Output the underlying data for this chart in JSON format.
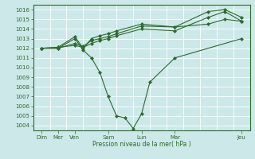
{
  "background_color": "#cce8e8",
  "grid_color": "#ffffff",
  "line_color": "#2d6a2d",
  "marker_color": "#2d6a2d",
  "xlabel": "Pression niveau de la mer( hPa )",
  "ylim": [
    1003.5,
    1016.5
  ],
  "xlim": [
    0,
    13
  ],
  "yticks": [
    1004,
    1005,
    1006,
    1007,
    1008,
    1009,
    1010,
    1011,
    1012,
    1013,
    1014,
    1015,
    1016
  ],
  "xtick_positions": [
    0.5,
    1.5,
    2.5,
    4.5,
    6.5,
    8.5,
    12.5
  ],
  "xtick_labels": [
    "Dim",
    "Mer",
    "Ven",
    "Sam",
    "Lun",
    "Mar",
    "Jeu"
  ],
  "minor_xtick_positions": [
    0,
    1,
    2,
    3,
    4,
    5,
    6,
    7,
    8,
    9,
    10,
    11,
    12,
    13
  ],
  "series": [
    {
      "x": [
        0.5,
        1.5,
        2.5,
        3.0,
        3.5,
        4.0,
        4.5,
        5.0,
        5.5,
        6.0,
        6.5,
        7.0,
        8.5,
        12.5
      ],
      "y": [
        1012.0,
        1012.0,
        1013.0,
        1011.8,
        1011.0,
        1009.5,
        1007.0,
        1005.0,
        1004.8,
        1003.7,
        1005.2,
        1008.5,
        1011.0,
        1013.0
      ]
    },
    {
      "x": [
        0.5,
        1.5,
        2.5,
        3.0,
        3.5,
        4.0,
        4.5,
        5.0,
        6.5,
        8.5,
        10.5,
        11.5,
        12.5
      ],
      "y": [
        1012.0,
        1012.0,
        1012.5,
        1012.2,
        1012.8,
        1013.0,
        1013.2,
        1013.5,
        1014.3,
        1014.2,
        1014.5,
        1015.0,
        1014.8
      ]
    },
    {
      "x": [
        0.5,
        1.5,
        2.5,
        3.0,
        3.5,
        4.0,
        4.5,
        5.0,
        6.5,
        8.5,
        10.5,
        11.5,
        12.5
      ],
      "y": [
        1012.0,
        1012.1,
        1013.2,
        1012.0,
        1013.0,
        1013.3,
        1013.5,
        1013.8,
        1014.5,
        1014.2,
        1015.8,
        1016.0,
        1015.2
      ]
    },
    {
      "x": [
        0.5,
        1.5,
        2.5,
        3.0,
        3.5,
        4.0,
        4.5,
        5.0,
        6.5,
        8.5,
        10.5,
        11.5,
        12.5
      ],
      "y": [
        1012.0,
        1012.1,
        1012.3,
        1012.1,
        1012.5,
        1012.8,
        1013.0,
        1013.3,
        1014.0,
        1013.8,
        1015.2,
        1015.8,
        1014.8
      ]
    }
  ]
}
